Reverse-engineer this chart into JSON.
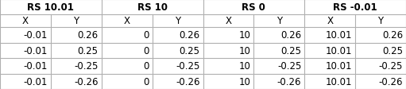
{
  "sections": [
    {
      "header": "RS 10.01",
      "col_x": [
        "-0.01",
        "-0.01",
        "-0.01",
        "-0.01"
      ],
      "col_y": [
        "0.26",
        "0.25",
        "-0.25",
        "-0.26"
      ]
    },
    {
      "header": "RS 10",
      "col_x": [
        "0",
        "0",
        "0",
        "0"
      ],
      "col_y": [
        "0.26",
        "0.25",
        "-0.25",
        "-0.26"
      ]
    },
    {
      "header": "RS 0",
      "col_x": [
        "10",
        "10",
        "10",
        "10"
      ],
      "col_y": [
        "0.26",
        "0.25",
        "-0.25",
        "-0.26"
      ]
    },
    {
      "header": "RS -0.01",
      "col_x": [
        "10.01",
        "10.01",
        "10.01",
        "10.01"
      ],
      "col_y": [
        "0.26",
        "0.25",
        "-0.25",
        "-0.26"
      ]
    }
  ],
  "bg_color": "#ffffff",
  "text_color": "#000000",
  "border_color": "#b0b0b0",
  "header_fontsize": 8.5,
  "data_fontsize": 8.5,
  "figwidth": 5.11,
  "figheight": 1.13,
  "dpi": 100
}
